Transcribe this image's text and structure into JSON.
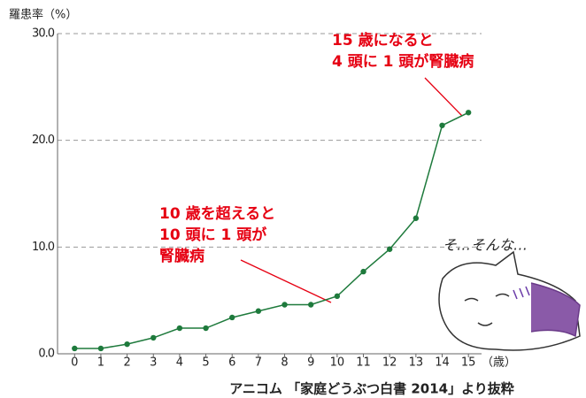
{
  "chart_data": {
    "type": "line",
    "y_label": "羅患率（%）",
    "x_unit": "（歳）",
    "source": "アニコム 「家庭どうぶつ白書 2014」より抜粋",
    "x": [
      0,
      1,
      2,
      3,
      4,
      5,
      6,
      7,
      8,
      9,
      10,
      11,
      12,
      13,
      14,
      15
    ],
    "series": [
      {
        "color": "#1e7a3c",
        "values": [
          0.5,
          0.5,
          0.9,
          1.5,
          2.4,
          2.4,
          3.4,
          4.0,
          4.6,
          4.6,
          5.4,
          7.7,
          9.8,
          12.7,
          21.4,
          22.6
        ]
      }
    ],
    "xlim": [
      -0.65,
      15.5
    ],
    "xticks": [
      0,
      1,
      2,
      3,
      4,
      5,
      6,
      7,
      8,
      9,
      10,
      11,
      12,
      13,
      14,
      15
    ],
    "ylim": [
      0,
      30
    ],
    "yticks": [
      {
        "value": 0,
        "label": "0.0"
      },
      {
        "value": 10,
        "label": "10.0"
      },
      {
        "value": 20,
        "label": "20.0"
      },
      {
        "value": 30,
        "label": "30.0"
      }
    ],
    "grid": true,
    "annotations": [
      {
        "lines": [
          "15 歳になると",
          "4 頭に 1 頭が腎臓病"
        ]
      },
      {
        "lines": [
          "10 歳を超えると",
          "10 頭に 1 頭が",
          "腎臓病"
        ]
      },
      {
        "lines": [
          "そ…そんな…"
        ]
      }
    ]
  }
}
